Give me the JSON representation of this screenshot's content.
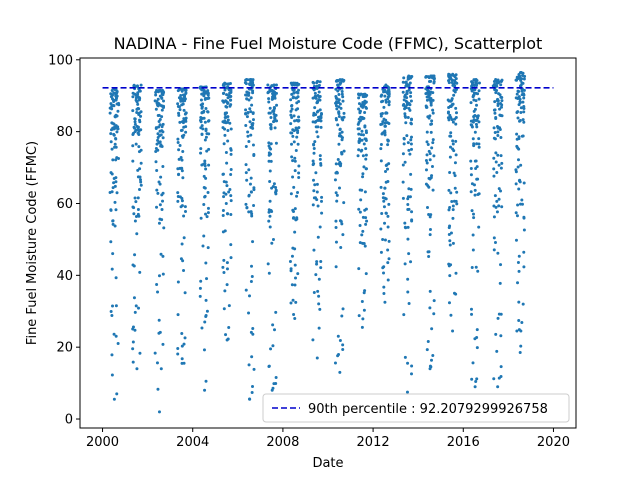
{
  "chart_data": {
    "type": "scatter",
    "title": "NADINA - Fine Fuel Moisture Code (FFMC), Scatterplot",
    "xlabel": "Date",
    "ylabel": "Fine Fuel Moisture Code (FFMC)",
    "xlim": [
      1999.0,
      2021.0
    ],
    "ylim": [
      -2.5,
      100.5
    ],
    "x_ticks": [
      2000,
      2004,
      2008,
      2012,
      2016,
      2020
    ],
    "x_tick_labels": [
      "2000",
      "2004",
      "2008",
      "2012",
      "2016",
      "2020"
    ],
    "y_ticks": [
      0,
      20,
      40,
      60,
      80,
      100
    ],
    "y_tick_labels": [
      "0",
      "20",
      "40",
      "60",
      "80",
      "100"
    ],
    "grid": false,
    "legend_position": "lower right",
    "reference_line": {
      "label": "90th percentile : 92.2079299926758",
      "value": 92.2079299926758,
      "style": "dashed",
      "color": "#0000cc"
    },
    "series": [
      {
        "color": "#1f77b4",
        "seasons": [
          {
            "year": 2000,
            "x_start": 2000.33,
            "x_end": 2000.72,
            "high": 92.0,
            "min": 5.5
          },
          {
            "year": 2001,
            "x_start": 2001.33,
            "x_end": 2001.72,
            "high": 93.0,
            "min": 14.0
          },
          {
            "year": 2002,
            "x_start": 2002.33,
            "x_end": 2002.72,
            "high": 91.5,
            "min": 2.0
          },
          {
            "year": 2003,
            "x_start": 2003.33,
            "x_end": 2003.72,
            "high": 92.0,
            "min": 15.5
          },
          {
            "year": 2004,
            "x_start": 2004.33,
            "x_end": 2004.72,
            "high": 92.5,
            "min": 8.0
          },
          {
            "year": 2005,
            "x_start": 2005.33,
            "x_end": 2005.72,
            "high": 93.5,
            "min": 22.0
          },
          {
            "year": 2006,
            "x_start": 2006.33,
            "x_end": 2006.72,
            "high": 94.5,
            "min": 5.5
          },
          {
            "year": 2007,
            "x_start": 2007.33,
            "x_end": 2007.72,
            "high": 93.0,
            "min": 8.0
          },
          {
            "year": 2008,
            "x_start": 2008.33,
            "x_end": 2008.72,
            "high": 93.5,
            "min": 28.0
          },
          {
            "year": 2009,
            "x_start": 2009.33,
            "x_end": 2009.72,
            "high": 94.0,
            "min": 17.0
          },
          {
            "year": 2010,
            "x_start": 2010.33,
            "x_end": 2010.72,
            "high": 94.5,
            "min": 13.0
          },
          {
            "year": 2011,
            "x_start": 2011.33,
            "x_end": 2011.72,
            "high": 90.5,
            "min": 25.5
          },
          {
            "year": 2012,
            "x_start": 2012.33,
            "x_end": 2012.72,
            "high": 93.0,
            "min": 32.5
          },
          {
            "year": 2013,
            "x_start": 2013.33,
            "x_end": 2013.72,
            "high": 95.5,
            "min": 7.5
          },
          {
            "year": 2014,
            "x_start": 2014.33,
            "x_end": 2014.72,
            "high": 95.5,
            "min": 14.0
          },
          {
            "year": 2015,
            "x_start": 2015.33,
            "x_end": 2015.72,
            "high": 96.0,
            "min": 24.5
          },
          {
            "year": 2016,
            "x_start": 2016.33,
            "x_end": 2016.72,
            "high": 94.5,
            "min": 9.0
          },
          {
            "year": 2017,
            "x_start": 2017.33,
            "x_end": 2017.72,
            "high": 94.5,
            "min": 9.0
          },
          {
            "year": 2018,
            "x_start": 2018.33,
            "x_end": 2018.72,
            "high": 96.5,
            "min": 18.5
          }
        ]
      }
    ]
  }
}
